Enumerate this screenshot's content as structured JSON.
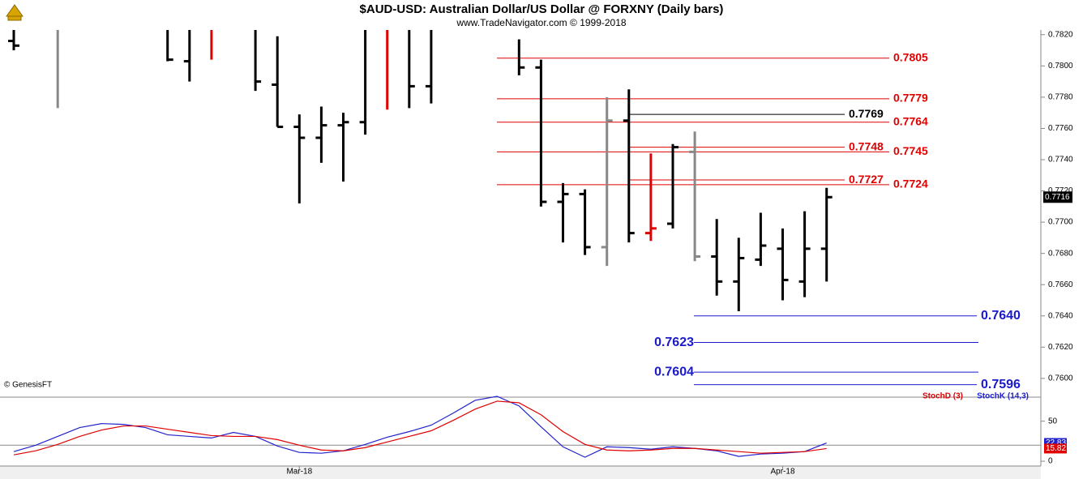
{
  "chart_data": [
    {
      "type": "ohlc",
      "title": "$AUD-USD:  Australian Dollar/US Dollar @ FORXNY  (Daily bars)",
      "subtitle": "www.TradeNavigator.com © 1999-2018",
      "watermark": "© GenesisFT",
      "categories": [
        null,
        null,
        null,
        null,
        null,
        null,
        null,
        null,
        null,
        null,
        null,
        null,
        null,
        "Mar-18",
        null,
        null,
        null,
        null,
        null,
        null,
        null,
        null,
        null,
        null,
        null,
        null,
        null,
        null,
        null,
        null,
        null,
        null,
        null,
        null,
        null,
        "Apr-18",
        null,
        null
      ],
      "open": [
        0.7816,
        null,
        null,
        null,
        null,
        null,
        null,
        null,
        0.7803,
        null,
        null,
        null,
        0.7788,
        0.7761,
        0.7754,
        0.7762,
        0.7764,
        null,
        null,
        0.7787,
        null,
        null,
        null,
        null,
        0.7799,
        0.7713,
        0.7718,
        0.7684,
        0.7765,
        0.7693,
        0.7699,
        0.7745,
        0.7678,
        0.7662,
        0.7676,
        0.7683,
        0.7662,
        0.7683
      ],
      "high": [
        0.7823,
        null,
        0.7823,
        null,
        null,
        null,
        null,
        0.7823,
        0.7823,
        0.7823,
        null,
        0.7823,
        0.7819,
        0.7769,
        0.7774,
        0.777,
        0.7823,
        0.7823,
        0.7823,
        0.7823,
        null,
        null,
        null,
        0.7817,
        0.7804,
        0.7725,
        0.7721,
        0.778,
        0.7785,
        0.7744,
        0.775,
        0.7758,
        0.7702,
        0.769,
        0.7706,
        0.7696,
        0.7707,
        0.7722
      ],
      "low": [
        0.781,
        null,
        0.7773,
        null,
        null,
        null,
        null,
        0.7803,
        0.779,
        0.7804,
        null,
        0.7784,
        0.7761,
        0.7712,
        0.7738,
        0.7726,
        0.7756,
        0.7772,
        0.7773,
        0.7776,
        null,
        null,
        null,
        0.7794,
        0.771,
        0.7687,
        0.7679,
        0.7672,
        0.7687,
        0.7688,
        0.7696,
        0.7675,
        0.7653,
        0.7643,
        0.7672,
        0.765,
        0.7652,
        0.7662
      ],
      "close": [
        0.7813,
        null,
        null,
        null,
        null,
        null,
        null,
        0.7804,
        null,
        null,
        null,
        0.779,
        0.7761,
        0.7754,
        0.7762,
        0.7764,
        null,
        null,
        0.7787,
        null,
        null,
        null,
        null,
        0.7799,
        0.7713,
        0.7718,
        0.7684,
        0.7765,
        0.7693,
        0.7696,
        0.7748,
        0.7678,
        0.7662,
        0.7677,
        0.7685,
        0.7663,
        0.7683,
        0.7716
      ],
      "bar_colors": [
        "#000000",
        null,
        "#888888",
        null,
        null,
        null,
        null,
        "#000000",
        "#000000",
        "#e00000",
        null,
        "#000000",
        "#000000",
        "#000000",
        "#000000",
        "#000000",
        "#000000",
        "#e00000",
        "#000000",
        "#000000",
        null,
        null,
        null,
        "#000000",
        "#000000",
        "#000000",
        "#000000",
        "#888888",
        "#000000",
        "#e00000",
        "#000000",
        "#888888",
        "#000000",
        "#000000",
        "#000000",
        "#000000",
        "#000000",
        "#000000"
      ],
      "ylim": [
        0.7588,
        0.7823
      ],
      "yticks": [
        {
          "value": 0.76,
          "label": "0.7600"
        },
        {
          "value": 0.762,
          "label": "0.7620"
        },
        {
          "value": 0.764,
          "label": "0.7640"
        },
        {
          "value": 0.766,
          "label": "0.7660"
        },
        {
          "value": 0.768,
          "label": "0.7680"
        },
        {
          "value": 0.77,
          "label": "0.7700"
        },
        {
          "value": 0.772,
          "label": "0.7720"
        },
        {
          "value": 0.774,
          "label": "0.7740"
        },
        {
          "value": 0.776,
          "label": "0.7760"
        },
        {
          "value": 0.778,
          "label": "0.7780"
        },
        {
          "value": 0.78,
          "label": "0.7800"
        },
        {
          "value": 0.782,
          "label": "0.7820"
        }
      ],
      "last_price": 0.7716,
      "levels": [
        {
          "value": 0.7805,
          "label": "0.7805",
          "color": "#e00000"
        },
        {
          "value": 0.7779,
          "label": "0.7779",
          "color": "#e00000"
        },
        {
          "value": 0.7769,
          "label": "0.7769",
          "color": "#000000"
        },
        {
          "value": 0.7764,
          "label": "0.7764",
          "color": "#e00000"
        },
        {
          "value": 0.7748,
          "label": "0.7748",
          "color": "#e00000"
        },
        {
          "value": 0.7745,
          "label": "0.7745",
          "color": "#e00000"
        },
        {
          "value": 0.7727,
          "label": "0.7727",
          "color": "#e00000"
        },
        {
          "value": 0.7724,
          "label": "0.7724",
          "color": "#e00000"
        },
        {
          "value": 0.764,
          "label": "0.7640",
          "color": "#1a1acc"
        },
        {
          "value": 0.7623,
          "label": "0.7623",
          "color": "#1a1acc"
        },
        {
          "value": 0.7604,
          "label": "0.7604",
          "color": "#1a1acc"
        },
        {
          "value": 0.7596,
          "label": "0.7596",
          "color": "#1a1acc"
        }
      ]
    },
    {
      "type": "line",
      "series": [
        {
          "name": "StochD (3)",
          "color": "#e00000",
          "values": [
            8,
            13,
            21,
            31,
            39,
            44,
            44,
            40,
            36,
            32,
            31,
            31,
            27,
            20,
            14,
            13,
            17,
            24,
            31,
            38,
            51,
            65,
            75,
            73,
            58,
            37,
            21,
            14,
            13,
            14,
            16,
            16,
            14,
            12,
            10,
            11,
            12,
            15.82
          ]
        },
        {
          "name": "StochK (14,3)",
          "color": "#2222cc",
          "values": [
            12,
            20,
            31,
            42,
            47,
            46,
            42,
            33,
            31,
            29,
            36,
            31,
            19,
            11,
            10,
            13,
            21,
            30,
            37,
            45,
            60,
            76,
            81,
            69,
            43,
            18,
            5,
            18,
            17,
            15,
            18,
            16,
            13,
            6,
            9,
            10,
            12,
            22.83
          ]
        }
      ],
      "ylim": [
        -6,
        80
      ],
      "yticks": [
        0,
        50
      ],
      "reference_line": 20
    }
  ]
}
